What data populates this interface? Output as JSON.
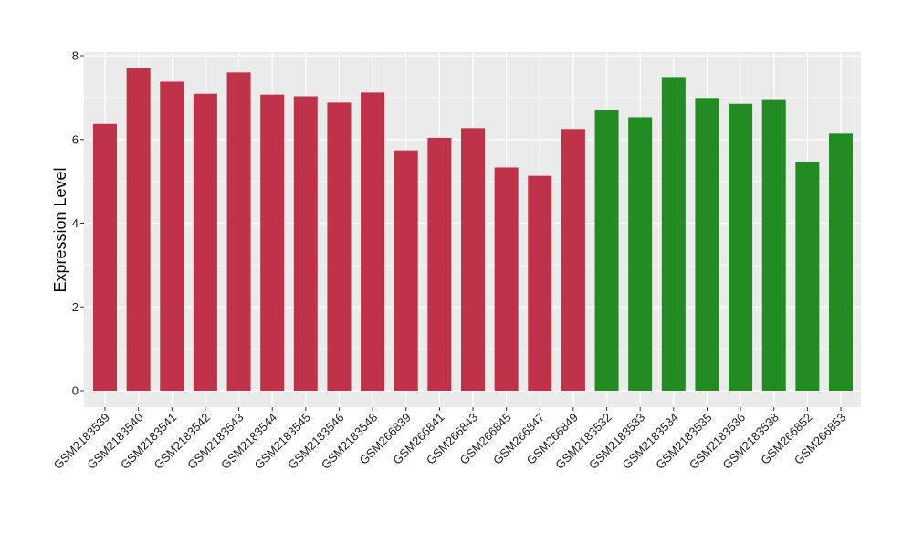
{
  "chart_data": {
    "type": "bar",
    "ylabel": "Expression Level",
    "xlabel": "",
    "title": "",
    "ylim": [
      0,
      8
    ],
    "yticks": [
      0,
      2,
      4,
      6,
      8
    ],
    "grid": true,
    "legend": "none",
    "categories": [
      "GSM2183539",
      "GSM2183540",
      "GSM2183541",
      "GSM2183542",
      "GSM2183543",
      "GSM2183544",
      "GSM2183545",
      "GSM2183546",
      "GSM2183548",
      "GSM266839",
      "GSM266841",
      "GSM266843",
      "GSM266845",
      "GSM266847",
      "GSM266849",
      "GSM2183532",
      "GSM2183533",
      "GSM2183534",
      "GSM2183535",
      "GSM2183536",
      "GSM2183538",
      "GSM266852",
      "GSM266853"
    ],
    "values": [
      6.37,
      7.7,
      7.38,
      7.09,
      7.6,
      7.07,
      7.03,
      6.88,
      7.12,
      5.74,
      6.04,
      6.27,
      5.33,
      5.13,
      6.25,
      6.7,
      6.53,
      7.49,
      6.99,
      6.85,
      6.94,
      5.46,
      6.14
    ],
    "bar_colors": [
      "#c0314a",
      "#c0314a",
      "#c0314a",
      "#c0314a",
      "#c0314a",
      "#c0314a",
      "#c0314a",
      "#c0314a",
      "#c0314a",
      "#c0314a",
      "#c0314a",
      "#c0314a",
      "#c0314a",
      "#c0314a",
      "#c0314a",
      "#228b22",
      "#228b22",
      "#228b22",
      "#228b22",
      "#228b22",
      "#228b22",
      "#228b22",
      "#228b22"
    ],
    "panel_background": "#ebebeb",
    "grid_color": "#ffffff"
  }
}
